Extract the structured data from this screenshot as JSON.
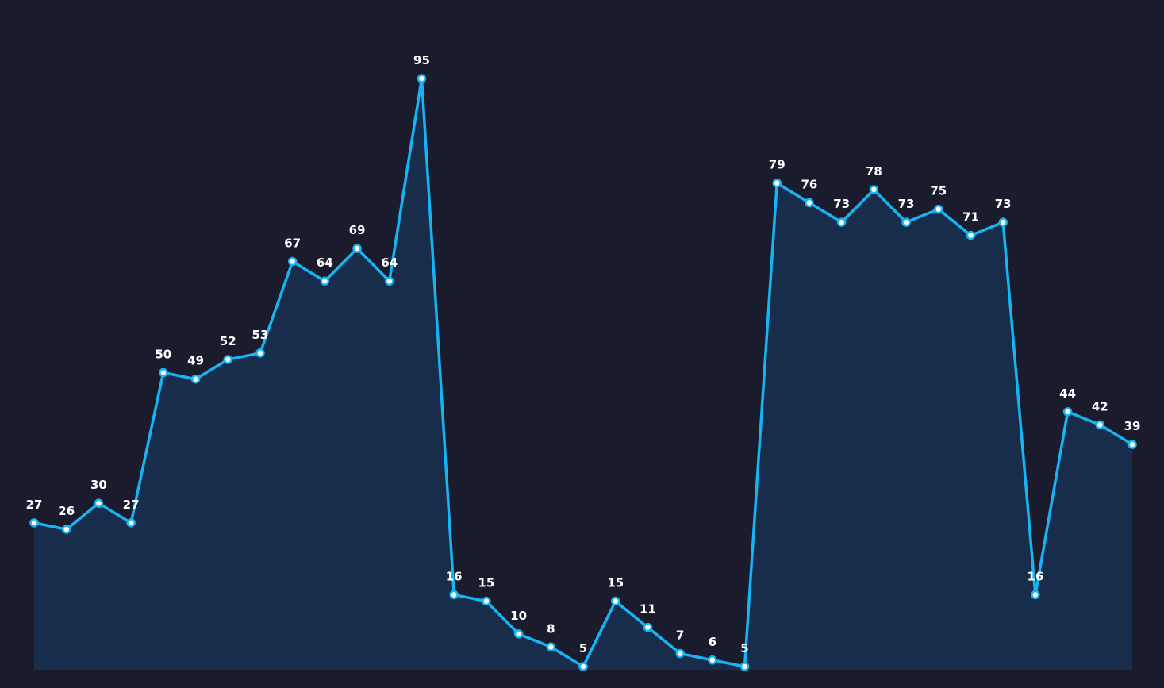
{
  "chart_data": {
    "type": "area",
    "title": "",
    "xlabel": "",
    "ylabel": "",
    "grid": false,
    "legend": "none",
    "ylim": [
      5,
      95
    ],
    "x": [
      1,
      2,
      3,
      4,
      5,
      6,
      7,
      8,
      9,
      10,
      11,
      12,
      13,
      14,
      15,
      16,
      17,
      18,
      19,
      20,
      21,
      22,
      23,
      24,
      25,
      26,
      27,
      28,
      29,
      30,
      31,
      32,
      33,
      34,
      35
    ],
    "series": [
      {
        "name": "",
        "values": [
          27,
          26,
          30,
          27,
          50,
          49,
          52,
          53,
          67,
          64,
          69,
          64,
          95,
          16,
          15,
          10,
          8,
          5,
          15,
          11,
          7,
          6,
          5,
          79,
          76,
          73,
          78,
          73,
          75,
          71,
          73,
          16,
          44,
          42,
          39
        ]
      }
    ],
    "data_labels": [
      "27",
      "26",
      "30",
      "27",
      "50",
      "49",
      "52",
      "53",
      "67",
      "64",
      "69",
      "64",
      "95",
      "16",
      "15",
      "10",
      "8",
      "5",
      "15",
      "11",
      "7",
      "6",
      "5",
      "79",
      "76",
      "73",
      "78",
      "73",
      "75",
      "71",
      "73",
      "16",
      "44",
      "42",
      "39"
    ],
    "colors": {
      "background": "#1b1b2e",
      "line": "#16b4f2",
      "area_fill": "#17304f",
      "marker_fill": "#ffffff",
      "label": "#ffffff"
    }
  }
}
